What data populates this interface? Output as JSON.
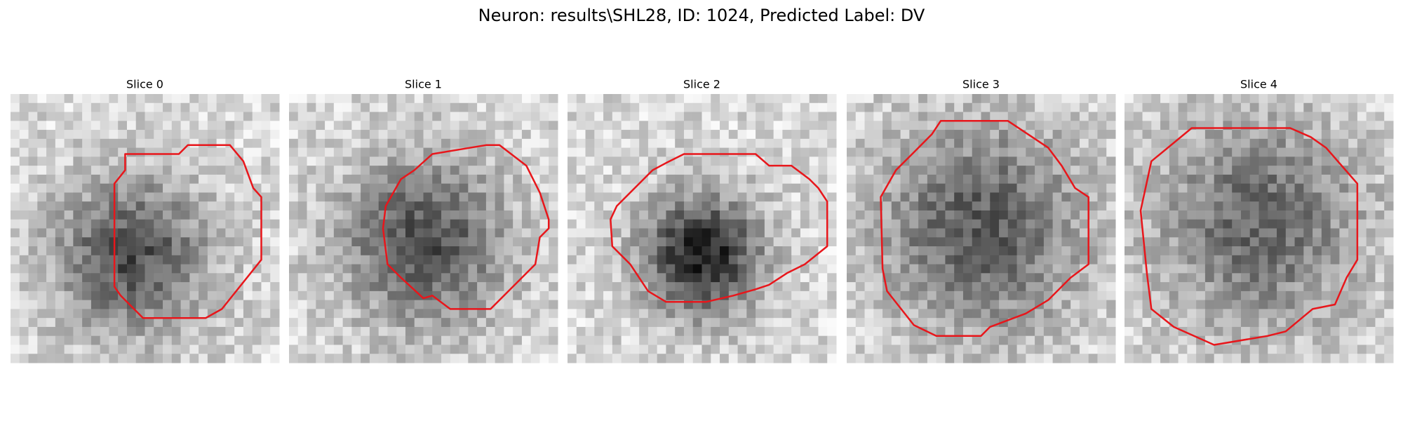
{
  "title": "Neuron: results\\SHL28, ID: 1024, Predicted Label: DV",
  "panels": [
    {
      "title": "Slice 0"
    },
    {
      "title": "Slice 1"
    },
    {
      "title": "Slice 2"
    },
    {
      "title": "Slice 3"
    },
    {
      "title": "Slice 4"
    }
  ]
}
